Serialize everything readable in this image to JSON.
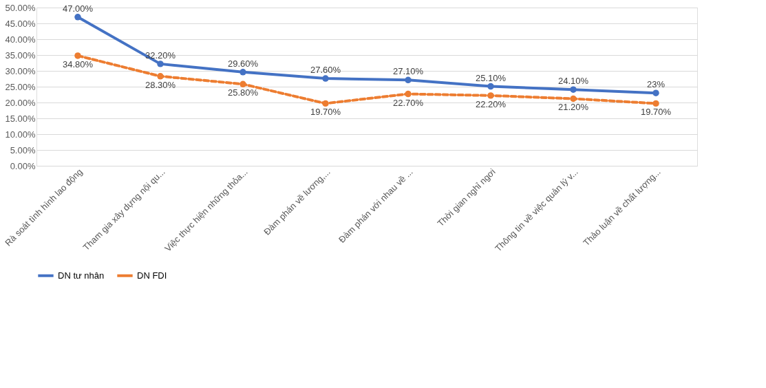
{
  "chart_data": {
    "type": "line",
    "categories": [
      "Rà soát tình hình lao động",
      "Tham gia xây dựng nội qu...",
      "Việc thực hiện những thỏa...",
      "Đàm phán về lương,...",
      "Đàm phán với nhau về ...",
      "Thời gian nghỉ ngơi",
      "Thông tin về việc quản lý v...",
      "Thảo luận về chất lượng..."
    ],
    "series": [
      {
        "name": "DN tư nhân",
        "color": "#4472c4",
        "line_style": "solid",
        "values": [
          47.0,
          32.2,
          29.6,
          27.6,
          27.1,
          25.1,
          24.1,
          23
        ],
        "value_labels": [
          "47.00%",
          "32.20%",
          "29.60%",
          "27.60%",
          "27.10%",
          "25.10%",
          "24.10%",
          "23%"
        ]
      },
      {
        "name": "DN FDI",
        "color": "#ed7d31",
        "line_style": "dashed",
        "values": [
          34.8,
          28.3,
          25.8,
          19.7,
          22.7,
          22.2,
          21.2,
          19.7
        ],
        "value_labels": [
          "34.80%",
          "28.30%",
          "25.80%",
          "19.70%",
          "22.70%",
          "22.20%",
          "21.20%",
          "19.70%"
        ]
      }
    ],
    "ylim": [
      0,
      50
    ],
    "yticks": [
      {
        "value": 0,
        "label": "0.00%"
      },
      {
        "value": 5,
        "label": "5.00%"
      },
      {
        "value": 10,
        "label": "10.00%"
      },
      {
        "value": 15,
        "label": "15.00%"
      },
      {
        "value": 20,
        "label": "20.00%"
      },
      {
        "value": 25,
        "label": "25.00%"
      },
      {
        "value": 30,
        "label": "30.00%"
      },
      {
        "value": 35,
        "label": "35.00%"
      },
      {
        "value": 40,
        "label": "40.00%"
      },
      {
        "value": 45,
        "label": "45.00%"
      },
      {
        "value": 50,
        "label": "50.00%"
      }
    ],
    "grid": "y",
    "legend": "bottom",
    "marker": "circle"
  }
}
